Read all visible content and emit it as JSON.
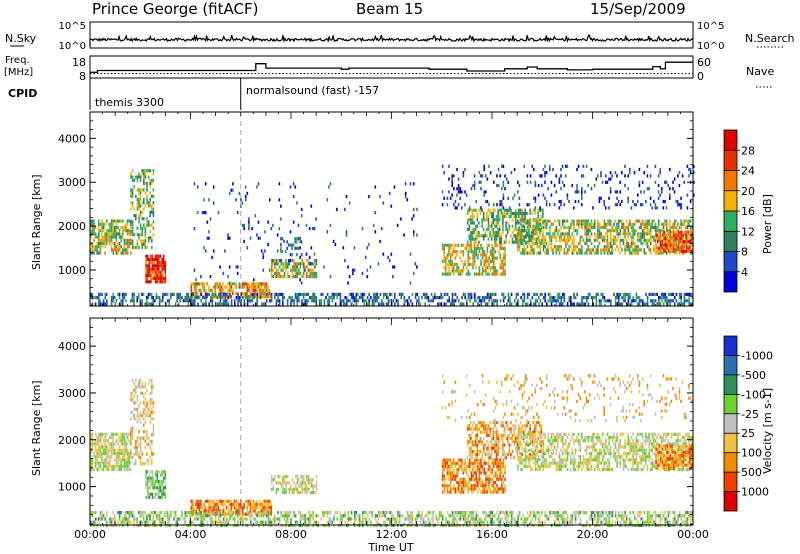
{
  "header": {
    "station": "Prince George (fitACF)",
    "beam": "Beam 15",
    "date": "15/Sep/2009"
  },
  "summary_panel": {
    "left_labels": {
      "nsky": "N.Sky",
      "freq": "Freq.",
      "freq_unit": "[MHz]",
      "cpid": "CPID"
    },
    "right_labels": {
      "nsearch": "N.Search",
      "nave": "Nave"
    },
    "nsky_ticks": [
      "10^5",
      "10^0"
    ],
    "nsearch_ticks": [
      "10^5",
      "10^0"
    ],
    "freq_ticks": [
      "18",
      "8"
    ],
    "nave_ticks": [
      "60",
      "0"
    ],
    "cpid_entries": [
      {
        "text": "themis 3300",
        "start_hour": 0
      },
      {
        "text": "normalsound (fast) -157",
        "start_hour": 6
      }
    ],
    "freq_steps": [
      {
        "start_hour": 0.0,
        "value": 10.6
      },
      {
        "start_hour": 0.3,
        "value": 11.4
      },
      {
        "start_hour": 6.6,
        "value": 14.5
      },
      {
        "start_hour": 7.0,
        "value": 12.5
      },
      {
        "start_hour": 10.0,
        "value": 12.0
      },
      {
        "start_hour": 10.3,
        "value": 12.5
      },
      {
        "start_hour": 13.5,
        "value": 12.0
      },
      {
        "start_hour": 15.0,
        "value": 11.2
      },
      {
        "start_hour": 16.5,
        "value": 12.2
      },
      {
        "start_hour": 17.4,
        "value": 13.0
      },
      {
        "start_hour": 17.8,
        "value": 12.2
      },
      {
        "start_hour": 19.0,
        "value": 11.7
      },
      {
        "start_hour": 20.0,
        "value": 12.0
      },
      {
        "start_hour": 22.4,
        "value": 13.2
      },
      {
        "start_hour": 22.7,
        "value": 12.2
      },
      {
        "start_hour": 22.9,
        "value": 15.2
      },
      {
        "start_hour": 24.0,
        "value": 15.2
      }
    ],
    "nave_level": 12
  },
  "chart_data": [
    {
      "type": "heatmap",
      "name": "power",
      "ylabel": "Slant Range [km]",
      "xlabel": "Time UT",
      "xlim": [
        0,
        24
      ],
      "ylim": [
        180,
        4600
      ],
      "yticks": [
        1000,
        2000,
        3000,
        4000
      ],
      "xtick_labels": [
        "00:00",
        "04:00",
        "08:00",
        "12:00",
        "16:00",
        "20:00",
        "00:00"
      ],
      "colorbar": {
        "label": "Power [dB]",
        "ticks": [
          "4",
          "8",
          "12",
          "16",
          "20",
          "24",
          "28"
        ],
        "colors": [
          "#0000d8",
          "#1f48c8",
          "#2f7f5e",
          "#2fae60",
          "#f2b400",
          "#f07800",
          "#e83000",
          "#e00000"
        ]
      },
      "scatter_regions": [
        {
          "t0": 0.0,
          "t1": 1.6,
          "r0": 1350,
          "r1": 2150,
          "level": 3.5,
          "density": 0.7
        },
        {
          "t0": 1.6,
          "t1": 2.5,
          "r0": 1500,
          "r1": 3300,
          "level": 3.0,
          "density": 0.45
        },
        {
          "t0": 2.2,
          "t1": 3.0,
          "r0": 750,
          "r1": 1350,
          "level": 6.0,
          "density": 0.85
        },
        {
          "t0": 4.0,
          "t1": 7.2,
          "r0": 420,
          "r1": 720,
          "level": 4.5,
          "density": 0.7
        },
        {
          "t0": 7.2,
          "t1": 9.0,
          "r0": 880,
          "r1": 1250,
          "level": 3.5,
          "density": 0.6
        },
        {
          "t0": 7.5,
          "t1": 8.5,
          "r0": 1350,
          "r1": 1750,
          "level": 2.0,
          "density": 0.35
        },
        {
          "t0": 0.0,
          "t1": 24.0,
          "r0": 190,
          "r1": 480,
          "level": 1.5,
          "density": 0.5
        },
        {
          "t0": 14.0,
          "t1": 16.5,
          "r0": 900,
          "r1": 1600,
          "level": 4.0,
          "density": 0.6
        },
        {
          "t0": 15.0,
          "t1": 18.0,
          "r0": 1600,
          "r1": 2400,
          "level": 3.0,
          "density": 0.55
        },
        {
          "t0": 17.0,
          "t1": 24.0,
          "r0": 1350,
          "r1": 2150,
          "level": 3.5,
          "density": 0.6
        },
        {
          "t0": 14.0,
          "t1": 24.0,
          "r0": 2400,
          "r1": 3400,
          "level": 0.8,
          "density": 0.14
        },
        {
          "t0": 22.5,
          "t1": 24.0,
          "r0": 1400,
          "r1": 1900,
          "level": 5.5,
          "density": 0.75
        },
        {
          "t0": 4.0,
          "t1": 13.0,
          "r0": 700,
          "r1": 3000,
          "level": 0.8,
          "density": 0.04
        }
      ]
    },
    {
      "type": "heatmap",
      "name": "velocity",
      "ylabel": "Slant Range [km]",
      "xlabel": "Time UT",
      "xlim": [
        0,
        24
      ],
      "ylim": [
        180,
        4600
      ],
      "yticks": [
        1000,
        2000,
        3000,
        4000
      ],
      "xtick_labels": [
        "00:00",
        "04:00",
        "08:00",
        "12:00",
        "16:00",
        "20:00",
        "00:00"
      ],
      "colorbar": {
        "label": "Velocity [m s-1]",
        "ticks": [
          "1000",
          "500",
          "100",
          "25",
          "-25",
          "-100",
          "-500",
          "-1000"
        ],
        "colors": [
          "#1a2fd0",
          "#2a6fb0",
          "#2f8f5a",
          "#6cd030",
          "#c0c0c0",
          "#f0c040",
          "#f08c00",
          "#f04000",
          "#e00000"
        ]
      },
      "scatter_regions": [
        {
          "t0": 0.0,
          "t1": 1.6,
          "r0": 1350,
          "r1": 2150,
          "level": 4.0,
          "density": 0.7
        },
        {
          "t0": 1.6,
          "t1": 2.5,
          "r0": 1500,
          "r1": 3300,
          "level": 5.0,
          "density": 0.4
        },
        {
          "t0": 2.2,
          "t1": 3.0,
          "r0": 750,
          "r1": 1350,
          "level": 3.0,
          "density": 0.75
        },
        {
          "t0": 4.0,
          "t1": 7.2,
          "r0": 420,
          "r1": 720,
          "level": 6.0,
          "density": 0.8
        },
        {
          "t0": 7.2,
          "t1": 9.0,
          "r0": 880,
          "r1": 1250,
          "level": 4.0,
          "density": 0.6
        },
        {
          "t0": 0.0,
          "t1": 24.0,
          "r0": 190,
          "r1": 480,
          "level": 3.5,
          "density": 0.55
        },
        {
          "t0": 14.0,
          "t1": 16.5,
          "r0": 900,
          "r1": 1600,
          "level": 6.0,
          "density": 0.7
        },
        {
          "t0": 15.0,
          "t1": 18.0,
          "r0": 1600,
          "r1": 2400,
          "level": 5.5,
          "density": 0.55
        },
        {
          "t0": 17.0,
          "t1": 24.0,
          "r0": 1350,
          "r1": 2150,
          "level": 4.0,
          "density": 0.55
        },
        {
          "t0": 22.5,
          "t1": 24.0,
          "r0": 1400,
          "r1": 1900,
          "level": 6.0,
          "density": 0.8
        },
        {
          "t0": 14.0,
          "t1": 24.0,
          "r0": 2400,
          "r1": 3400,
          "level": 5.0,
          "density": 0.12
        }
      ]
    }
  ]
}
